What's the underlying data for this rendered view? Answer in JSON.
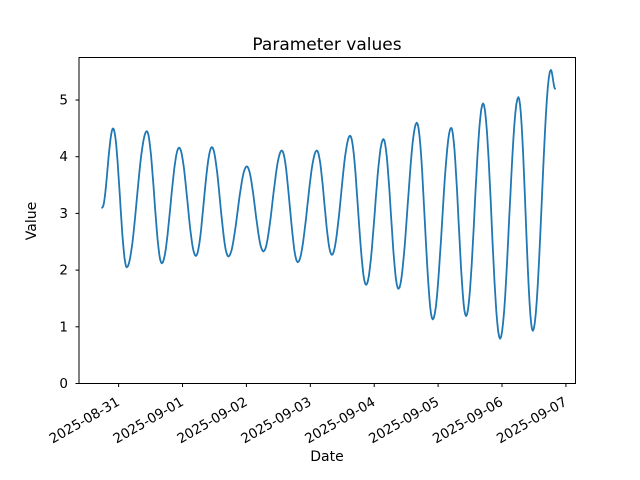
{
  "chart_data": {
    "type": "line",
    "title": "Parameter values",
    "xlabel": "Date",
    "ylabel": "Value",
    "line_color": "#1f77b4",
    "axis_color": "#000000",
    "background_color": "#ffffff",
    "grid": "off",
    "legend": "none",
    "x_unit": "days since 2025-08-31 00:00",
    "x_tick_labels": [
      "2025-08-31",
      "2025-09-01",
      "2025-09-02",
      "2025-09-03",
      "2025-09-04",
      "2025-09-05",
      "2025-09-06",
      "2025-09-07"
    ],
    "x_tick_positions_days": [
      0,
      1,
      2,
      3,
      4,
      5,
      6,
      7
    ],
    "x_tick_rotation_deg": 30,
    "y_ticks": [
      0,
      1,
      2,
      3,
      4,
      5
    ],
    "xlim_days": [
      -0.62,
      7.15
    ],
    "ylim": [
      0,
      5.75
    ],
    "series": [
      {
        "name": "parameter",
        "description": "oscillating curve, period about 0.52 days; alternating peaks and troughs read from the plot",
        "points_days_value": [
          [
            -0.258,
            3.1
          ],
          [
            -0.086,
            4.5
          ],
          [
            0.128,
            2.05
          ],
          [
            0.441,
            4.45
          ],
          [
            0.676,
            2.12
          ],
          [
            0.947,
            4.16
          ],
          [
            1.208,
            2.25
          ],
          [
            1.459,
            4.17
          ],
          [
            1.718,
            2.24
          ],
          [
            2.006,
            3.83
          ],
          [
            2.266,
            2.33
          ],
          [
            2.554,
            4.11
          ],
          [
            2.804,
            2.14
          ],
          [
            3.102,
            4.11
          ],
          [
            3.337,
            2.27
          ],
          [
            3.623,
            4.37
          ],
          [
            3.873,
            1.74
          ],
          [
            4.144,
            4.31
          ],
          [
            4.379,
            1.67
          ],
          [
            4.667,
            4.6
          ],
          [
            4.917,
            1.13
          ],
          [
            5.204,
            4.51
          ],
          [
            5.438,
            1.19
          ],
          [
            5.704,
            4.94
          ],
          [
            5.97,
            0.79
          ],
          [
            6.256,
            5.05
          ],
          [
            6.482,
            0.93
          ],
          [
            6.764,
            5.53
          ],
          [
            6.831,
            5.2
          ]
        ]
      }
    ]
  }
}
